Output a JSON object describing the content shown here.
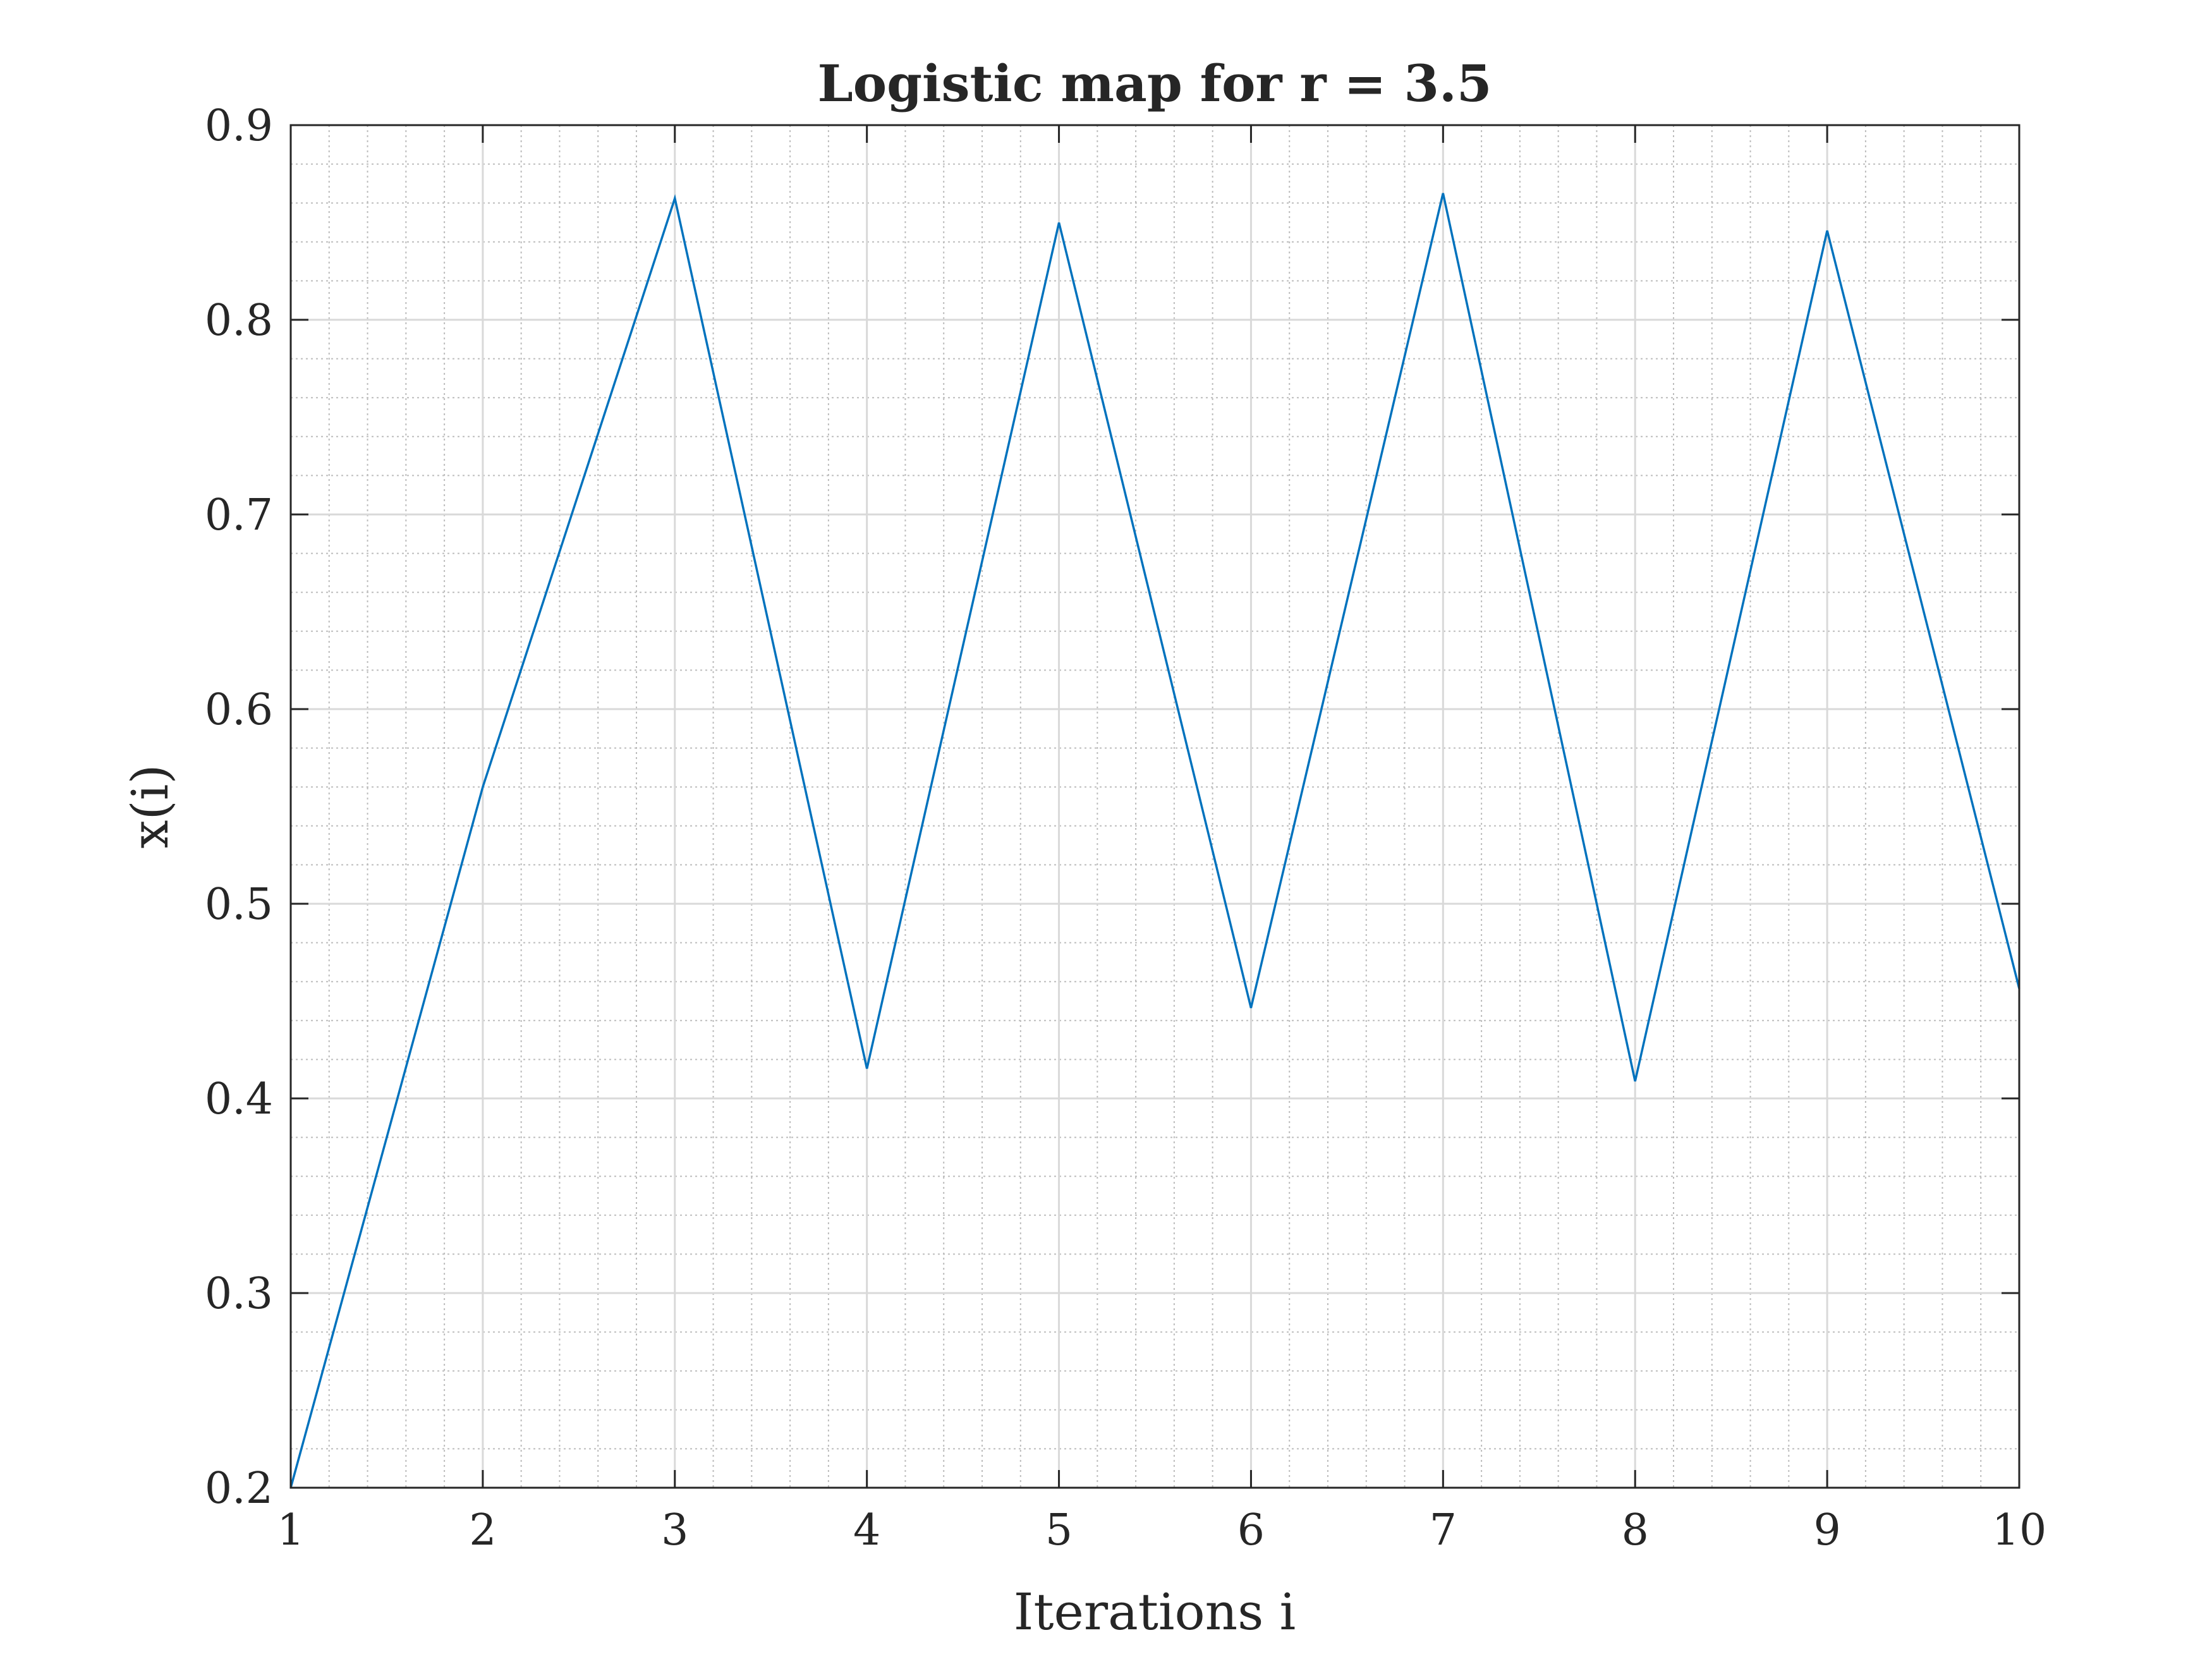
{
  "chart_data": {
    "type": "line",
    "title": "Logistic map for r = 3.5",
    "xlabel": "Iterations i",
    "ylabel": "x(i)",
    "xlim": [
      1,
      10
    ],
    "ylim": [
      0.2,
      0.9
    ],
    "xticks": [
      1,
      2,
      3,
      4,
      5,
      6,
      7,
      8,
      9,
      10
    ],
    "yticks": [
      0.2,
      0.3,
      0.4,
      0.5,
      0.6,
      0.7,
      0.8,
      0.9
    ],
    "xtick_labels": [
      "1",
      "2",
      "3",
      "4",
      "5",
      "6",
      "7",
      "8",
      "9",
      "10"
    ],
    "ytick_labels": [
      "0.2",
      "0.3",
      "0.4",
      "0.5",
      "0.6",
      "0.7",
      "0.8",
      "0.9"
    ],
    "grid": true,
    "minor_grid": true,
    "series": [
      {
        "color": "#0072BD",
        "x": [
          1,
          2,
          3,
          4,
          5,
          6,
          7,
          8,
          9,
          10
        ],
        "y": [
          0.2,
          0.56,
          0.8624,
          0.4153,
          0.8499,
          0.4465,
          0.865,
          0.4088,
          0.8458,
          0.4564
        ]
      }
    ]
  }
}
